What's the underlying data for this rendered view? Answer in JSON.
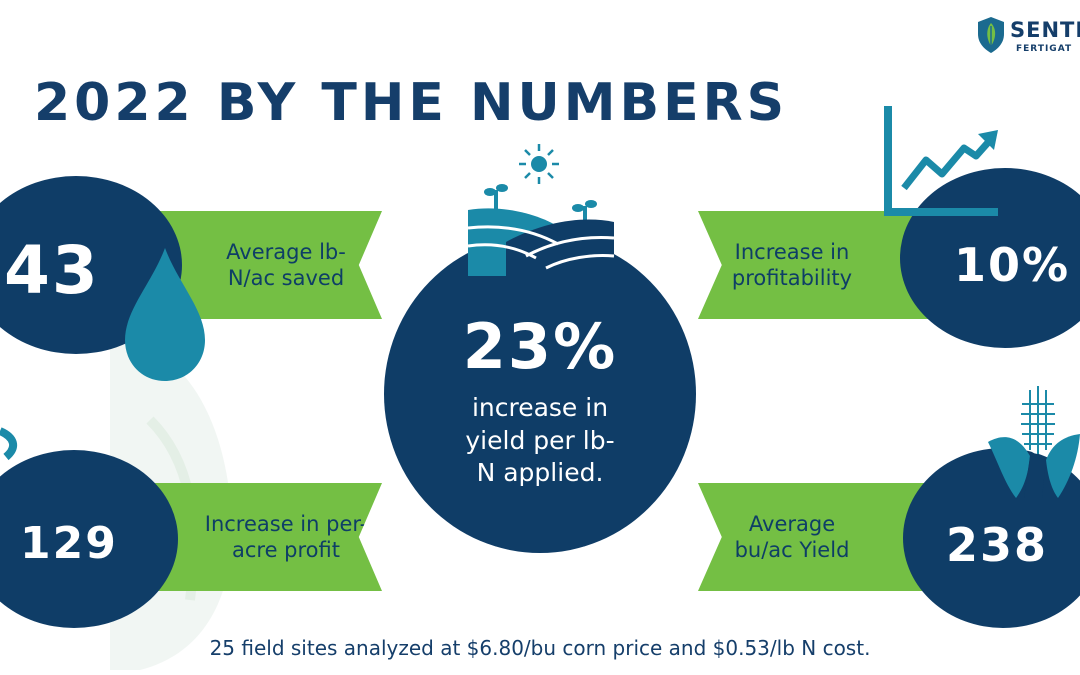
{
  "brand": {
    "name": "SENTI",
    "sub": "FERTIGAT",
    "colors": {
      "navy": "#0f3d67",
      "green": "#74bf44",
      "teal": "#1b8aa8"
    }
  },
  "title": "2022 BY THE NUMBERS",
  "stats": {
    "lbn_saved": {
      "value": "43",
      "label": "Average lb-N/ac saved"
    },
    "profit": {
      "value": "129",
      "label": "Increase in per-acre profit"
    },
    "yield_per_lbn": {
      "value": "23%",
      "label": "increase in yield per lb-N applied."
    },
    "profitability": {
      "value": "10%",
      "label": "Increase in profitability"
    },
    "avg_yield": {
      "value": "238",
      "label": "Average bu/ac Yield"
    }
  },
  "footnote": "25 field sites analyzed at $6.80/bu corn price and $0.53/lb N cost.",
  "icons": [
    "shield-leaf-logo-icon",
    "water-drop-icon",
    "sun-icon",
    "farm-field-icon",
    "growth-chart-icon",
    "corn-icon"
  ]
}
